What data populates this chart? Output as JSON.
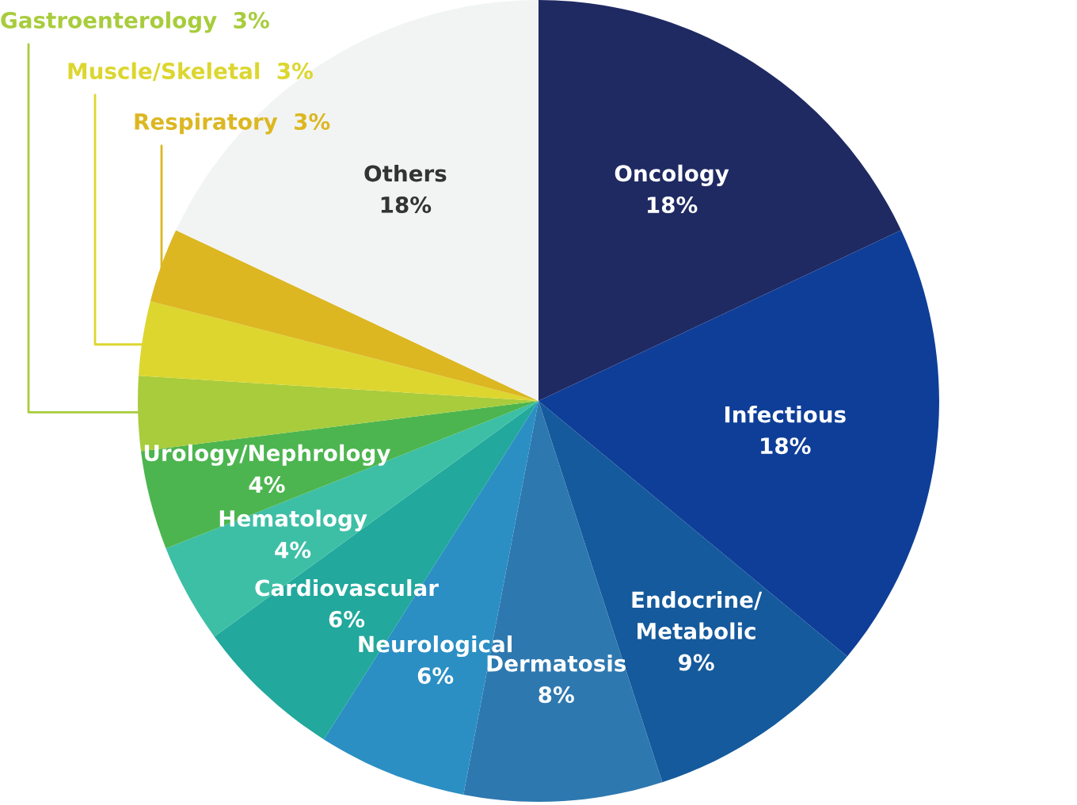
{
  "chart_data": {
    "type": "pie",
    "categories": [
      "Oncology",
      "Infectious",
      "Endocrine/\nMetabolic",
      "Dermatosis",
      "Neurological",
      "Cardiovascular",
      "Hematology",
      "Urology/Nephrology",
      "Gastroenterology",
      "Muscle/Skeletal",
      "Respiratory",
      "Others"
    ],
    "values": [
      18,
      18,
      9,
      8,
      6,
      6,
      4,
      4,
      3,
      3,
      3,
      18
    ],
    "value_labels": [
      "18%",
      "18%",
      "9%",
      "8%",
      "6%",
      "6%",
      "4%",
      "4%",
      "3%",
      "3%",
      "3%",
      "18%"
    ],
    "colors": [
      "#1f2a63",
      "#0f3e98",
      "#155a9c",
      "#2e78b0",
      "#2b8fc4",
      "#22a89c",
      "#3dbfa6",
      "#4cb54f",
      "#a8cc3c",
      "#dcd62f",
      "#dcb722",
      "#f2f4f4"
    ]
  }
}
